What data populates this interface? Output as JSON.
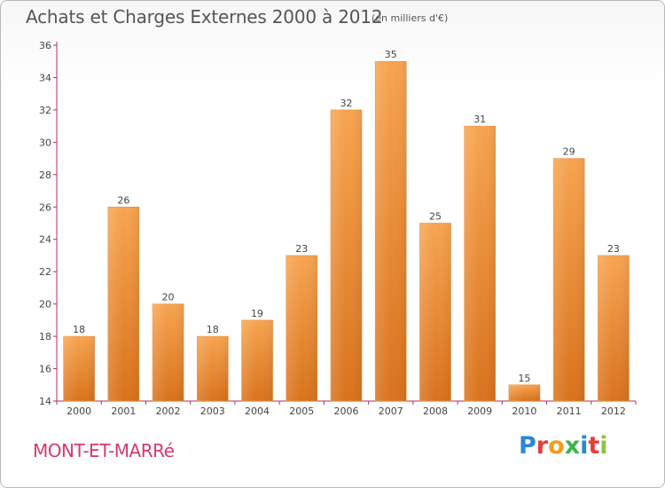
{
  "header": {
    "title": "Achats et Charges Externes 2000 à 2012",
    "unit": "(en milliers d'€)"
  },
  "footer": {
    "place": "MONT-ET-MARRé",
    "logo": [
      "P",
      "r",
      "o",
      "x",
      "i",
      "t",
      "i"
    ]
  },
  "colors": {
    "bar_top": "#f7a450",
    "bar_bottom": "#d9721c",
    "axis": "#b0305a",
    "grid": "#dddddd",
    "place_text": "#d23b6b"
  },
  "chart_data": {
    "type": "bar",
    "categories": [
      "2000",
      "2001",
      "2002",
      "2003",
      "2004",
      "2005",
      "2006",
      "2007",
      "2008",
      "2009",
      "2010",
      "2011",
      "2012"
    ],
    "values": [
      18,
      26,
      20,
      18,
      19,
      23,
      32,
      35,
      25,
      31,
      15,
      29,
      23
    ],
    "title": "Achats et Charges Externes 2000 à 2012",
    "subtitle": "(en milliers d'€)",
    "xlabel": "",
    "ylabel": "",
    "ylim": [
      14,
      36
    ],
    "yticks": [
      14,
      16,
      18,
      20,
      22,
      24,
      26,
      28,
      30,
      32,
      34,
      36
    ],
    "grid": false,
    "data_labels": true
  }
}
